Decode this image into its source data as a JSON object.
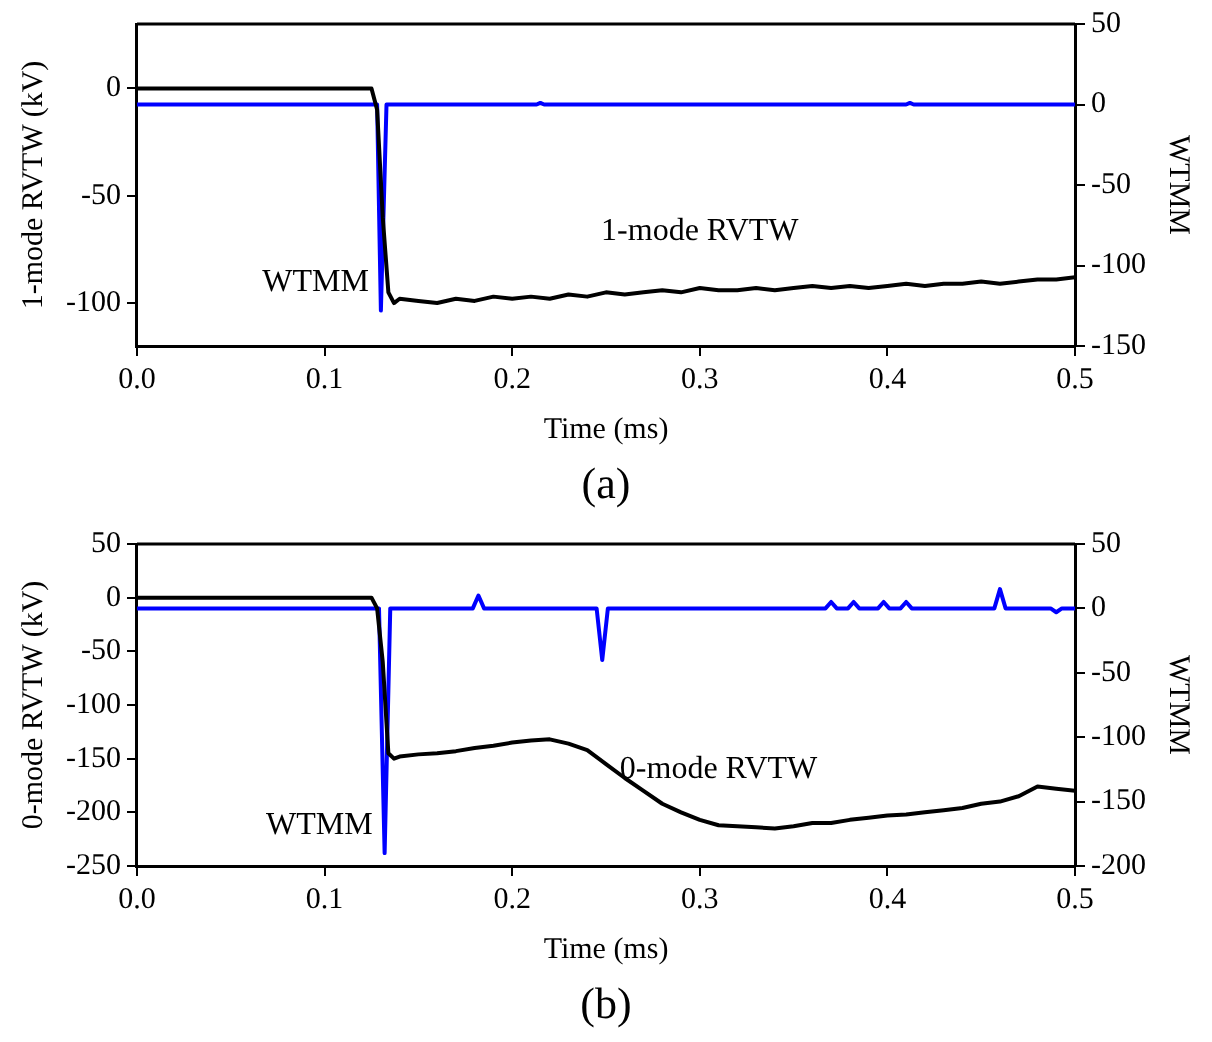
{
  "chart_data": [
    {
      "type": "line",
      "xlabel": "Time (ms)",
      "ylabel": "1-mode RVTW (kV)",
      "y2label": "WTMM",
      "annotations": [
        "(a)"
      ],
      "legend": false,
      "grid": false,
      "marker": "none",
      "line_style": "solid",
      "xlim": [
        0,
        0.5
      ],
      "xticks": [
        {
          "value": 0,
          "label": "0.0"
        },
        0.1,
        0.2,
        0.3,
        0.4,
        0.5
      ],
      "ylim": [
        -120,
        30
      ],
      "yticks": [
        -100,
        -50,
        0
      ],
      "y2lim": [
        -150,
        50
      ],
      "y2ticks": [
        -150,
        -100,
        -50,
        0,
        50
      ],
      "series": [
        {
          "name": "1-mode RVTW",
          "color": "#000000",
          "x": [
            0,
            0.1,
            0.12,
            0.125,
            0.128,
            0.131,
            0.134,
            0.137,
            0.14,
            0.15,
            0.16,
            0.17,
            0.18,
            0.19,
            0.2,
            0.21,
            0.22,
            0.23,
            0.24,
            0.25,
            0.26,
            0.27,
            0.28,
            0.29,
            0.3,
            0.31,
            0.32,
            0.33,
            0.34,
            0.35,
            0.36,
            0.37,
            0.38,
            0.39,
            0.4,
            0.41,
            0.42,
            0.43,
            0.44,
            0.45,
            0.46,
            0.47,
            0.48,
            0.49,
            0.5
          ],
          "values": [
            0,
            0,
            0,
            0,
            -10,
            -60,
            -95,
            -100,
            -98,
            -99,
            -100,
            -98,
            -99,
            -97,
            -98,
            -97,
            -98,
            -96,
            -97,
            -95,
            -96,
            -95,
            -94,
            -95,
            -93,
            -94,
            -94,
            -93,
            -94,
            -93,
            -92,
            -93,
            -92,
            -93,
            -92,
            -91,
            -92,
            -91,
            -91,
            -90,
            -91,
            -90,
            -89,
            -89,
            -88
          ]
        },
        {
          "name": "WTMM",
          "color": "#0000ff",
          "axis": "y2",
          "x": [
            0,
            0.128,
            0.13,
            0.133,
            0.213,
            0.215,
            0.217,
            0.41,
            0.412,
            0.414,
            0.5
          ],
          "values": [
            0,
            0,
            -128,
            0,
            0,
            1,
            0,
            0,
            1,
            0,
            0
          ]
        }
      ]
    },
    {
      "type": "line",
      "xlabel": "Time (ms)",
      "ylabel": "0-mode RVTW (kV)",
      "y2label": "WTMM",
      "annotations": [
        "(b)"
      ],
      "legend": false,
      "grid": false,
      "marker": "none",
      "line_style": "solid",
      "xlim": [
        0,
        0.5
      ],
      "xticks": [
        {
          "value": 0,
          "label": "0.0"
        },
        0.1,
        0.2,
        0.3,
        0.4,
        0.5
      ],
      "ylim": [
        -250,
        50
      ],
      "yticks": [
        -250,
        -200,
        -150,
        -100,
        -50,
        0,
        50
      ],
      "y2lim": [
        -200,
        50
      ],
      "y2ticks": [
        -200,
        -150,
        -100,
        -50,
        0,
        50
      ],
      "series": [
        {
          "name": "0-mode RVTW",
          "color": "#000000",
          "x": [
            0,
            0.12,
            0.125,
            0.128,
            0.131,
            0.134,
            0.137,
            0.14,
            0.15,
            0.16,
            0.17,
            0.18,
            0.19,
            0.2,
            0.21,
            0.22,
            0.23,
            0.24,
            0.25,
            0.26,
            0.27,
            0.28,
            0.29,
            0.3,
            0.31,
            0.32,
            0.33,
            0.34,
            0.35,
            0.36,
            0.37,
            0.38,
            0.39,
            0.4,
            0.41,
            0.42,
            0.43,
            0.44,
            0.45,
            0.46,
            0.47,
            0.48,
            0.49,
            0.5
          ],
          "values": [
            0,
            0,
            0,
            -10,
            -60,
            -145,
            -150,
            -148,
            -146,
            -145,
            -143,
            -140,
            -138,
            -135,
            -133,
            -132,
            -136,
            -142,
            -155,
            -168,
            -180,
            -192,
            -200,
            -207,
            -212,
            -213,
            -214,
            -215,
            -213,
            -210,
            -210,
            -207,
            -205,
            -203,
            -202,
            -200,
            -198,
            -196,
            -192,
            -190,
            -185,
            -176,
            -178,
            -180
          ]
        },
        {
          "name": "WTMM",
          "color": "#0000ff",
          "axis": "y2",
          "x": [
            0,
            0.129,
            0.132,
            0.135,
            0.179,
            0.182,
            0.185,
            0.245,
            0.248,
            0.251,
            0.367,
            0.37,
            0.373,
            0.379,
            0.382,
            0.385,
            0.395,
            0.398,
            0.401,
            0.407,
            0.41,
            0.413,
            0.457,
            0.46,
            0.463,
            0.487,
            0.49,
            0.493,
            0.5
          ],
          "values": [
            0,
            0,
            -190,
            0,
            0,
            10,
            0,
            0,
            -40,
            0,
            0,
            5,
            0,
            0,
            5,
            0,
            0,
            5,
            0,
            0,
            5,
            0,
            0,
            15,
            0,
            0,
            -3,
            0,
            0
          ]
        }
      ]
    }
  ]
}
